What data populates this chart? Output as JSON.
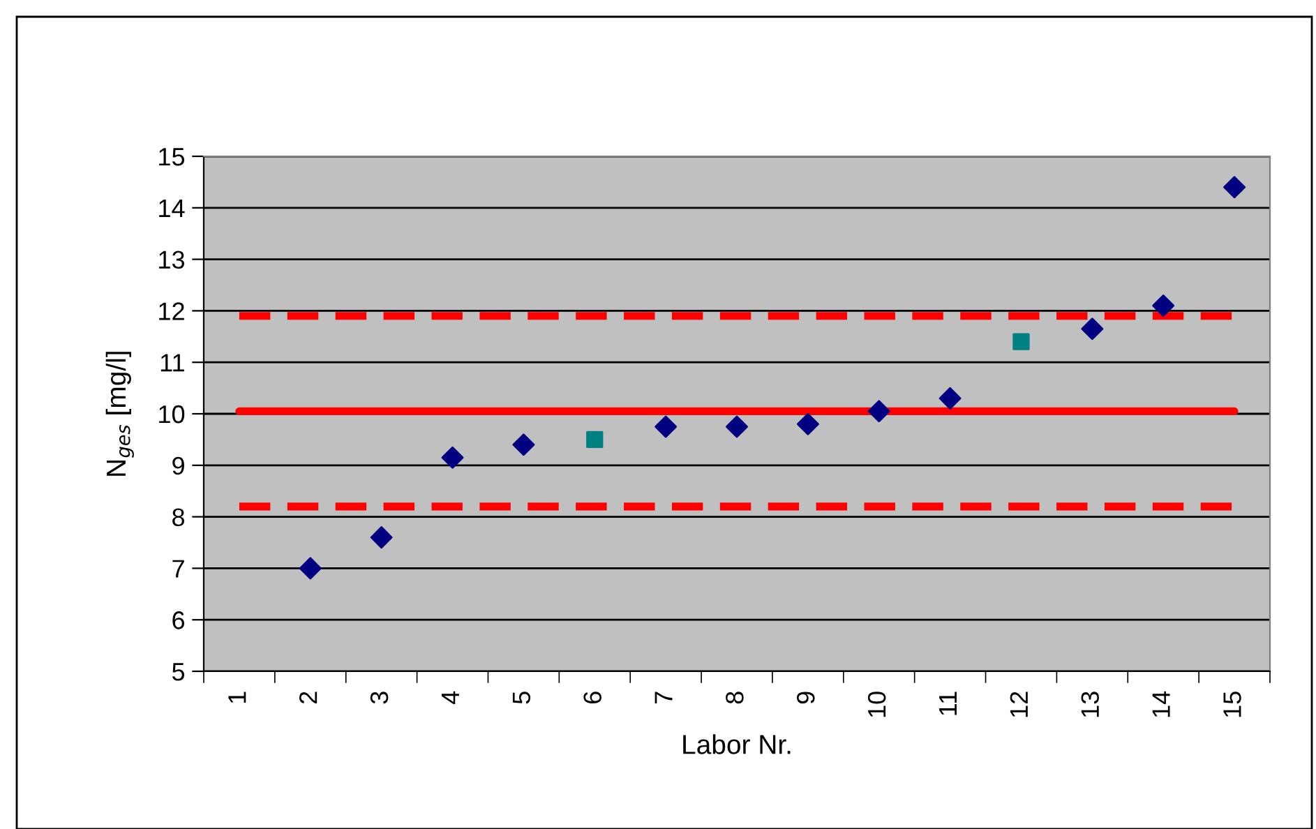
{
  "chart_data": {
    "type": "scatter",
    "xlabel": "Labor Nr.",
    "ylabel": "N$_{ges}$ [mg/l]",
    "categories": [
      "1",
      "2",
      "3",
      "4",
      "5",
      "6",
      "7",
      "8",
      "9",
      "10",
      "11",
      "12",
      "13",
      "14",
      "15"
    ],
    "series": [
      {
        "color": "#000080",
        "marker": "diamond",
        "values": [
          null,
          7.0,
          7.6,
          9.15,
          9.4,
          null,
          9.75,
          9.75,
          9.8,
          10.05,
          10.3,
          null,
          11.65,
          12.1,
          14.4
        ]
      },
      {
        "color": "#008080",
        "marker": "square",
        "values": [
          null,
          null,
          null,
          null,
          null,
          9.5,
          null,
          null,
          null,
          null,
          null,
          11.4,
          null,
          null,
          null
        ]
      }
    ],
    "ref_lines": [
      {
        "axis": "y",
        "value": 11.9,
        "color": "#ff0000",
        "line_style": "dashed"
      },
      {
        "axis": "y",
        "value": 10.05,
        "color": "#ff0000",
        "line_style": "solid"
      },
      {
        "axis": "y",
        "value": 8.2,
        "color": "#ff0000",
        "line_style": "dashed"
      }
    ],
    "ylim": [
      5,
      15
    ],
    "yticks": [
      5,
      6,
      7,
      8,
      9,
      10,
      11,
      12,
      13,
      14,
      15
    ],
    "grid": "y",
    "legend": false
  }
}
